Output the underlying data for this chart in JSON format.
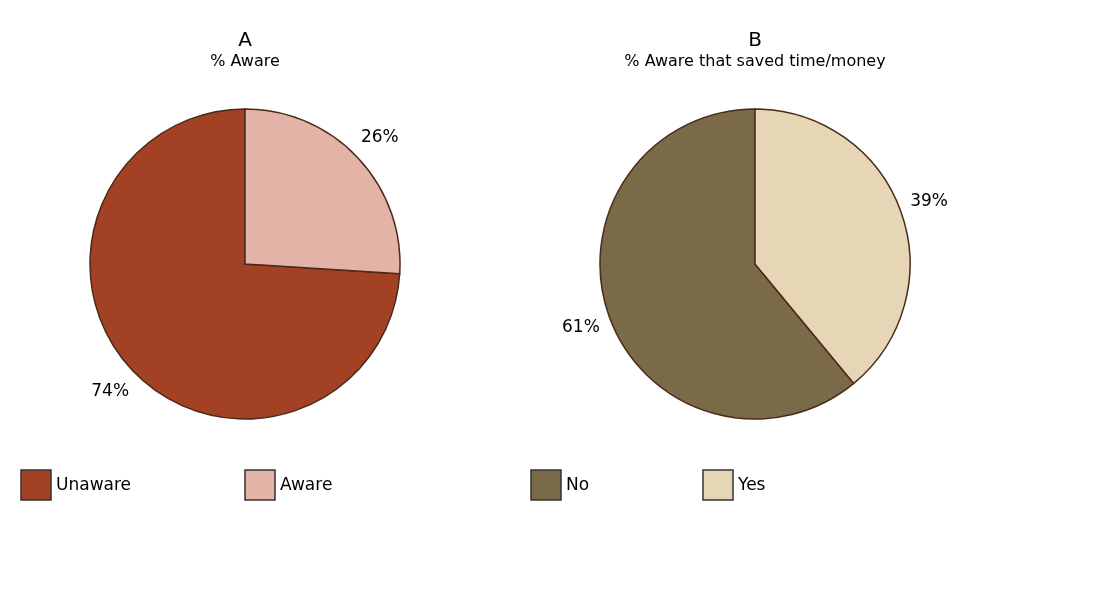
{
  "chart_data": [
    {
      "type": "pie",
      "title": "A",
      "subtitle": "% Aware",
      "categories": [
        "Unaware",
        "Aware"
      ],
      "values": [
        74,
        26
      ],
      "colors": [
        "#a34124",
        "#e4b3a7"
      ],
      "value_labels": [
        "74%",
        "26%"
      ],
      "legend": "bottom"
    },
    {
      "type": "pie",
      "title": "B",
      "subtitle": "% Aware that saved time/money",
      "categories": [
        "No",
        "Yes"
      ],
      "values": [
        61,
        39
      ],
      "colors": [
        "#7a6a48",
        "#e6d6b6"
      ],
      "value_labels": [
        "61%",
        "39%"
      ],
      "legend": "bottom"
    }
  ]
}
